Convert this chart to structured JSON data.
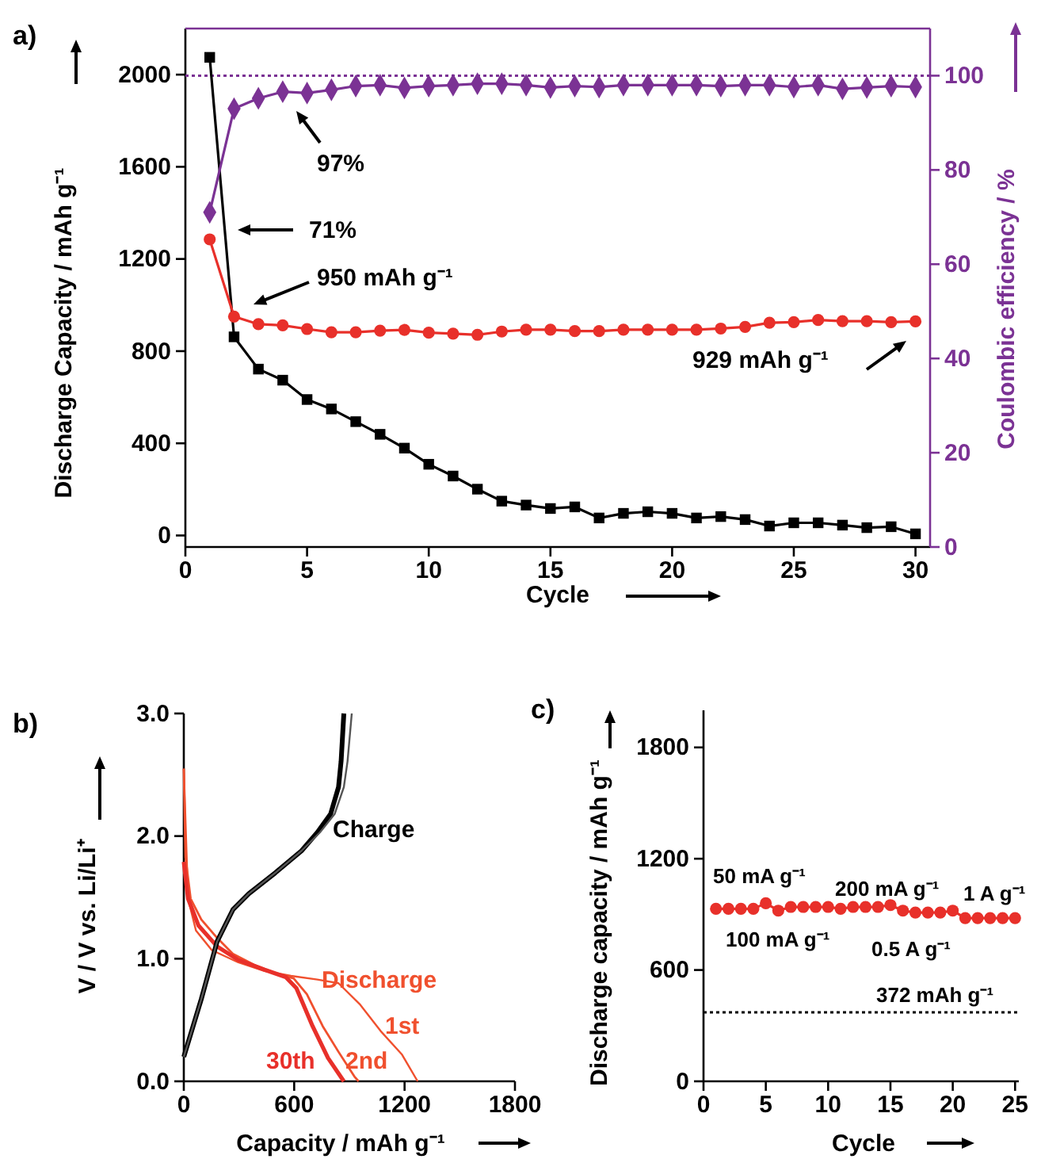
{
  "chart_data": [
    {
      "type": "line",
      "title": "a)",
      "xlabel": "Cycle",
      "ylabel": "Discharge Capacity / mAh g⁻¹",
      "y2label": "Coulombic efficiency / %",
      "x": [
        1,
        2,
        3,
        4,
        5,
        6,
        7,
        8,
        9,
        10,
        11,
        12,
        13,
        14,
        15,
        16,
        17,
        18,
        19,
        20,
        21,
        22,
        23,
        24,
        25,
        26,
        27,
        28,
        29,
        30
      ],
      "xlim": [
        0,
        30.6
      ],
      "xticks": [
        0,
        5,
        10,
        15,
        20,
        25,
        30
      ],
      "ylim": [
        -50,
        2200
      ],
      "yticks": [
        0,
        400,
        800,
        1200,
        1600,
        2000
      ],
      "y2lim": [
        0,
        110
      ],
      "y2ticks": [
        0,
        20,
        40,
        60,
        80,
        100
      ],
      "series": [
        {
          "color": "#000000",
          "marker": "square",
          "values": [
            2075,
            862,
            722,
            674,
            590,
            549,
            494,
            439,
            379,
            309,
            258,
            201,
            149,
            132,
            117,
            124,
            76,
            96,
            103,
            96,
            76,
            82,
            69,
            41,
            55,
            55,
            45,
            34,
            38,
            7
          ]
        },
        {
          "color": "#e8302a",
          "marker": "circle",
          "values": [
            1285,
            950,
            917,
            912,
            896,
            882,
            882,
            889,
            892,
            880,
            876,
            871,
            885,
            893,
            893,
            887,
            887,
            893,
            893,
            893,
            893,
            898,
            905,
            923,
            926,
            935,
            930,
            930,
            926,
            929
          ]
        },
        {
          "color": "#7b3294",
          "marker": "diamond",
          "axis": "y2",
          "values": [
            71,
            93,
            95.2,
            96.6,
            96.3,
            97,
            97.8,
            98,
            97.4,
            97.8,
            98,
            98.3,
            98.3,
            98,
            97.5,
            97.8,
            97.6,
            98,
            98,
            98,
            98,
            97.8,
            98,
            98,
            97.6,
            98,
            97.2,
            97.5,
            97.8,
            97.6
          ]
        }
      ],
      "ref_lines": [
        {
          "axis": "y2",
          "value": 100,
          "color": "#7b3294",
          "line_style": "dotted"
        }
      ],
      "annotations": [
        "97%",
        "71%",
        "950 mAh g⁻¹",
        "929 mAh g⁻¹"
      ]
    },
    {
      "type": "line",
      "title": "b)",
      "xlabel": "Capacity / mAh g⁻¹",
      "ylabel": "V / V vs. Li/Li⁺",
      "marker": "none",
      "xlim": [
        0,
        1800
      ],
      "xticks": [
        0,
        600,
        1200,
        1800
      ],
      "ylim": [
        0,
        3
      ],
      "yticks": [
        {
          "value": 0,
          "label": "0.0"
        },
        {
          "value": 1,
          "label": "1.0"
        },
        {
          "value": 2,
          "label": "2.0"
        },
        {
          "value": 3,
          "label": "3.0"
        }
      ],
      "series": [
        {
          "name": "1st",
          "color": "#f0502e",
          "x": [
            0,
            23,
            66,
            152,
            296,
            439,
            583,
            726,
            841,
            956,
            1070,
            1185,
            1271
          ],
          "values": [
            2.55,
            1.49,
            1.23,
            1.07,
            0.97,
            0.9,
            0.86,
            0.83,
            0.8,
            0.63,
            0.41,
            0.22,
            0
          ]
        },
        {
          "name": "2nd",
          "color": "#f0502e",
          "x": [
            0,
            9,
            37,
            95,
            181,
            267,
            382,
            497,
            597,
            669,
            755,
            841,
            927,
            950
          ],
          "values": [
            2.55,
            1.83,
            1.49,
            1.32,
            1.17,
            1.04,
            0.95,
            0.88,
            0.84,
            0.71,
            0.45,
            0.24,
            0.04,
            0
          ]
        },
        {
          "name": "30th",
          "color": "#e8302a",
          "x": [
            0,
            23,
            80,
            181,
            296,
            439,
            554,
            612,
            700,
            784,
            870
          ],
          "values": [
            1.79,
            1.49,
            1.27,
            1.1,
            0.99,
            0.91,
            0.85,
            0.76,
            0.45,
            0.19,
            0
          ]
        },
        {
          "color": "#000000",
          "x": [
            0,
            95,
            181,
            267,
            353,
            497,
            640,
            726,
            798,
            841,
            855,
            870
          ],
          "values": [
            0.2,
            0.67,
            1.14,
            1.4,
            1.53,
            1.7,
            1.88,
            2.03,
            2.18,
            2.4,
            2.61,
            3
          ]
        },
        {
          "color": "#555555",
          "x": [
            0,
            95,
            181,
            267,
            353,
            497,
            640,
            740,
            820,
            870,
            890,
            913
          ],
          "values": [
            0.2,
            0.67,
            1.14,
            1.4,
            1.53,
            1.7,
            1.88,
            2.03,
            2.18,
            2.4,
            2.61,
            3
          ]
        }
      ],
      "annotations": [
        "Charge",
        "Discharge"
      ]
    },
    {
      "type": "line",
      "title": "c)",
      "xlabel": "Cycle",
      "ylabel": "Discharge capacity / mAh g⁻¹",
      "marker": "circle",
      "x": [
        1,
        2,
        3,
        4,
        5,
        6,
        7,
        8,
        9,
        10,
        11,
        12,
        13,
        14,
        15,
        16,
        17,
        18,
        19,
        20,
        21,
        22,
        23,
        24,
        25
      ],
      "xlim": [
        0,
        25.3
      ],
      "xticks": [
        0,
        5,
        10,
        15,
        20,
        25
      ],
      "ylim": [
        0,
        2000
      ],
      "yticks": [
        0,
        600,
        1200,
        1800
      ],
      "series": [
        {
          "color": "#e8302a",
          "values": [
            930,
            930,
            930,
            930,
            960,
            920,
            940,
            940,
            940,
            940,
            930,
            940,
            940,
            940,
            950,
            920,
            910,
            910,
            910,
            920,
            880,
            880,
            880,
            880,
            880
          ]
        }
      ],
      "ref_lines": [
        {
          "axis": "y",
          "value": 372,
          "label": "372 mAh g⁻¹",
          "color": "#000000",
          "line_style": "dotted"
        }
      ],
      "annotations": [
        "50 mA g⁻¹",
        "100 mA g⁻¹",
        "200 mA g⁻¹",
        "0.5 A g⁻¹",
        "1 A g⁻¹"
      ]
    }
  ]
}
